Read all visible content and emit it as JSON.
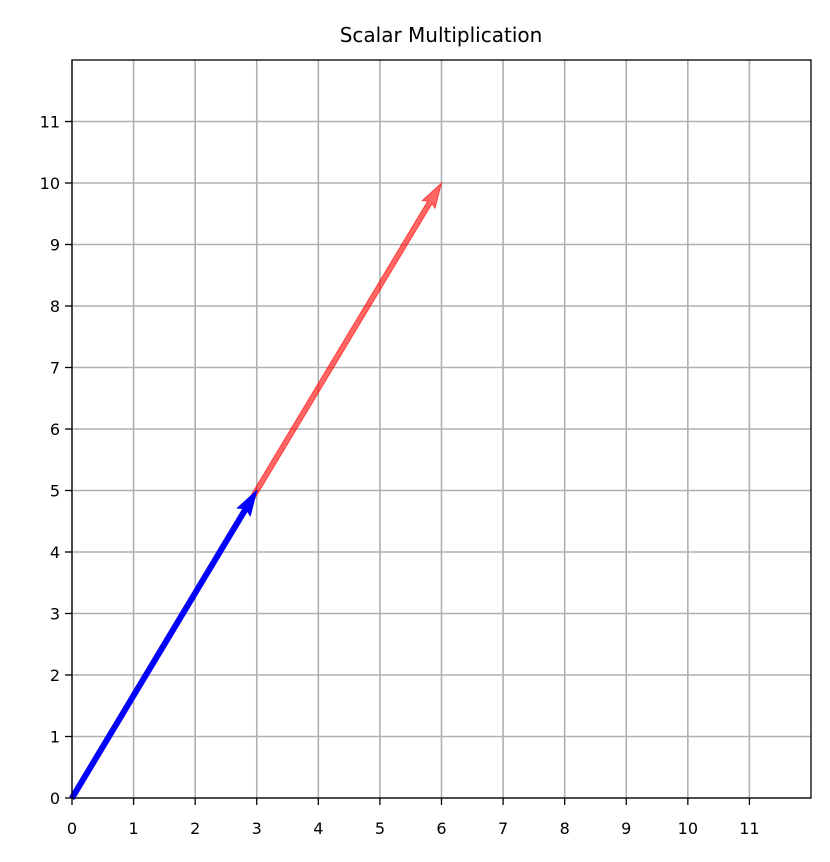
{
  "chart_data": {
    "type": "vector_plot",
    "title": "Scalar Multiplication",
    "xlabel": "",
    "ylabel": "",
    "xlim": [
      0,
      12
    ],
    "ylim": [
      0,
      12
    ],
    "xticks": [
      0,
      1,
      2,
      3,
      4,
      5,
      6,
      7,
      8,
      9,
      10,
      11
    ],
    "yticks": [
      0,
      1,
      2,
      3,
      4,
      5,
      6,
      7,
      8,
      9,
      10,
      11
    ],
    "grid": true,
    "vectors": [
      {
        "id": "scaled",
        "origin": [
          0,
          0
        ],
        "end": [
          6,
          10
        ],
        "color": "#ff0000",
        "alpha": 0.6
      },
      {
        "id": "original",
        "origin": [
          0,
          0
        ],
        "end": [
          3,
          5
        ],
        "color": "#0000ff",
        "alpha": 1.0
      }
    ]
  }
}
